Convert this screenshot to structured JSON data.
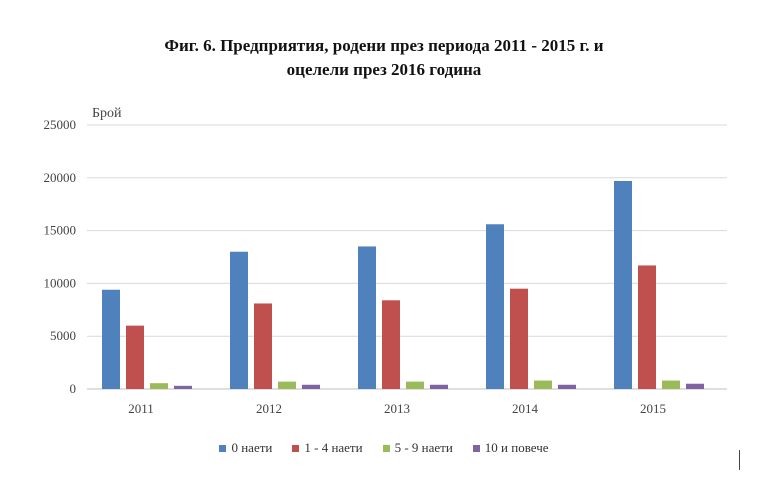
{
  "title_line1": "Фиг. 6. Предприятия, родени през периода 2011 - 2015 г. и",
  "title_line2": "оцелели през 2016 година",
  "chart_data": {
    "type": "bar",
    "title": "Фиг. 6. Предприятия, родени през периода 2011 - 2015 г. и оцелели през 2016 година",
    "ylabel": "Брой",
    "xlabel": "",
    "ylim": [
      0,
      25000
    ],
    "yticks": [
      0,
      5000,
      10000,
      15000,
      20000,
      25000
    ],
    "grid": true,
    "legend_position": "bottom",
    "categories": [
      "2011",
      "2012",
      "2013",
      "2014",
      "2015"
    ],
    "series": [
      {
        "name": "0 наети",
        "color": "#4F81BD",
        "values": [
          9400,
          13000,
          13500,
          15600,
          19700
        ]
      },
      {
        "name": "1 - 4 наети",
        "color": "#C0504D",
        "values": [
          6000,
          8100,
          8400,
          9500,
          11700
        ]
      },
      {
        "name": "5 - 9 наети",
        "color": "#9BBB59",
        "values": [
          550,
          700,
          700,
          800,
          800
        ]
      },
      {
        "name": "10 и повече",
        "color": "#8064A2",
        "values": [
          300,
          400,
          400,
          400,
          500
        ]
      }
    ]
  }
}
